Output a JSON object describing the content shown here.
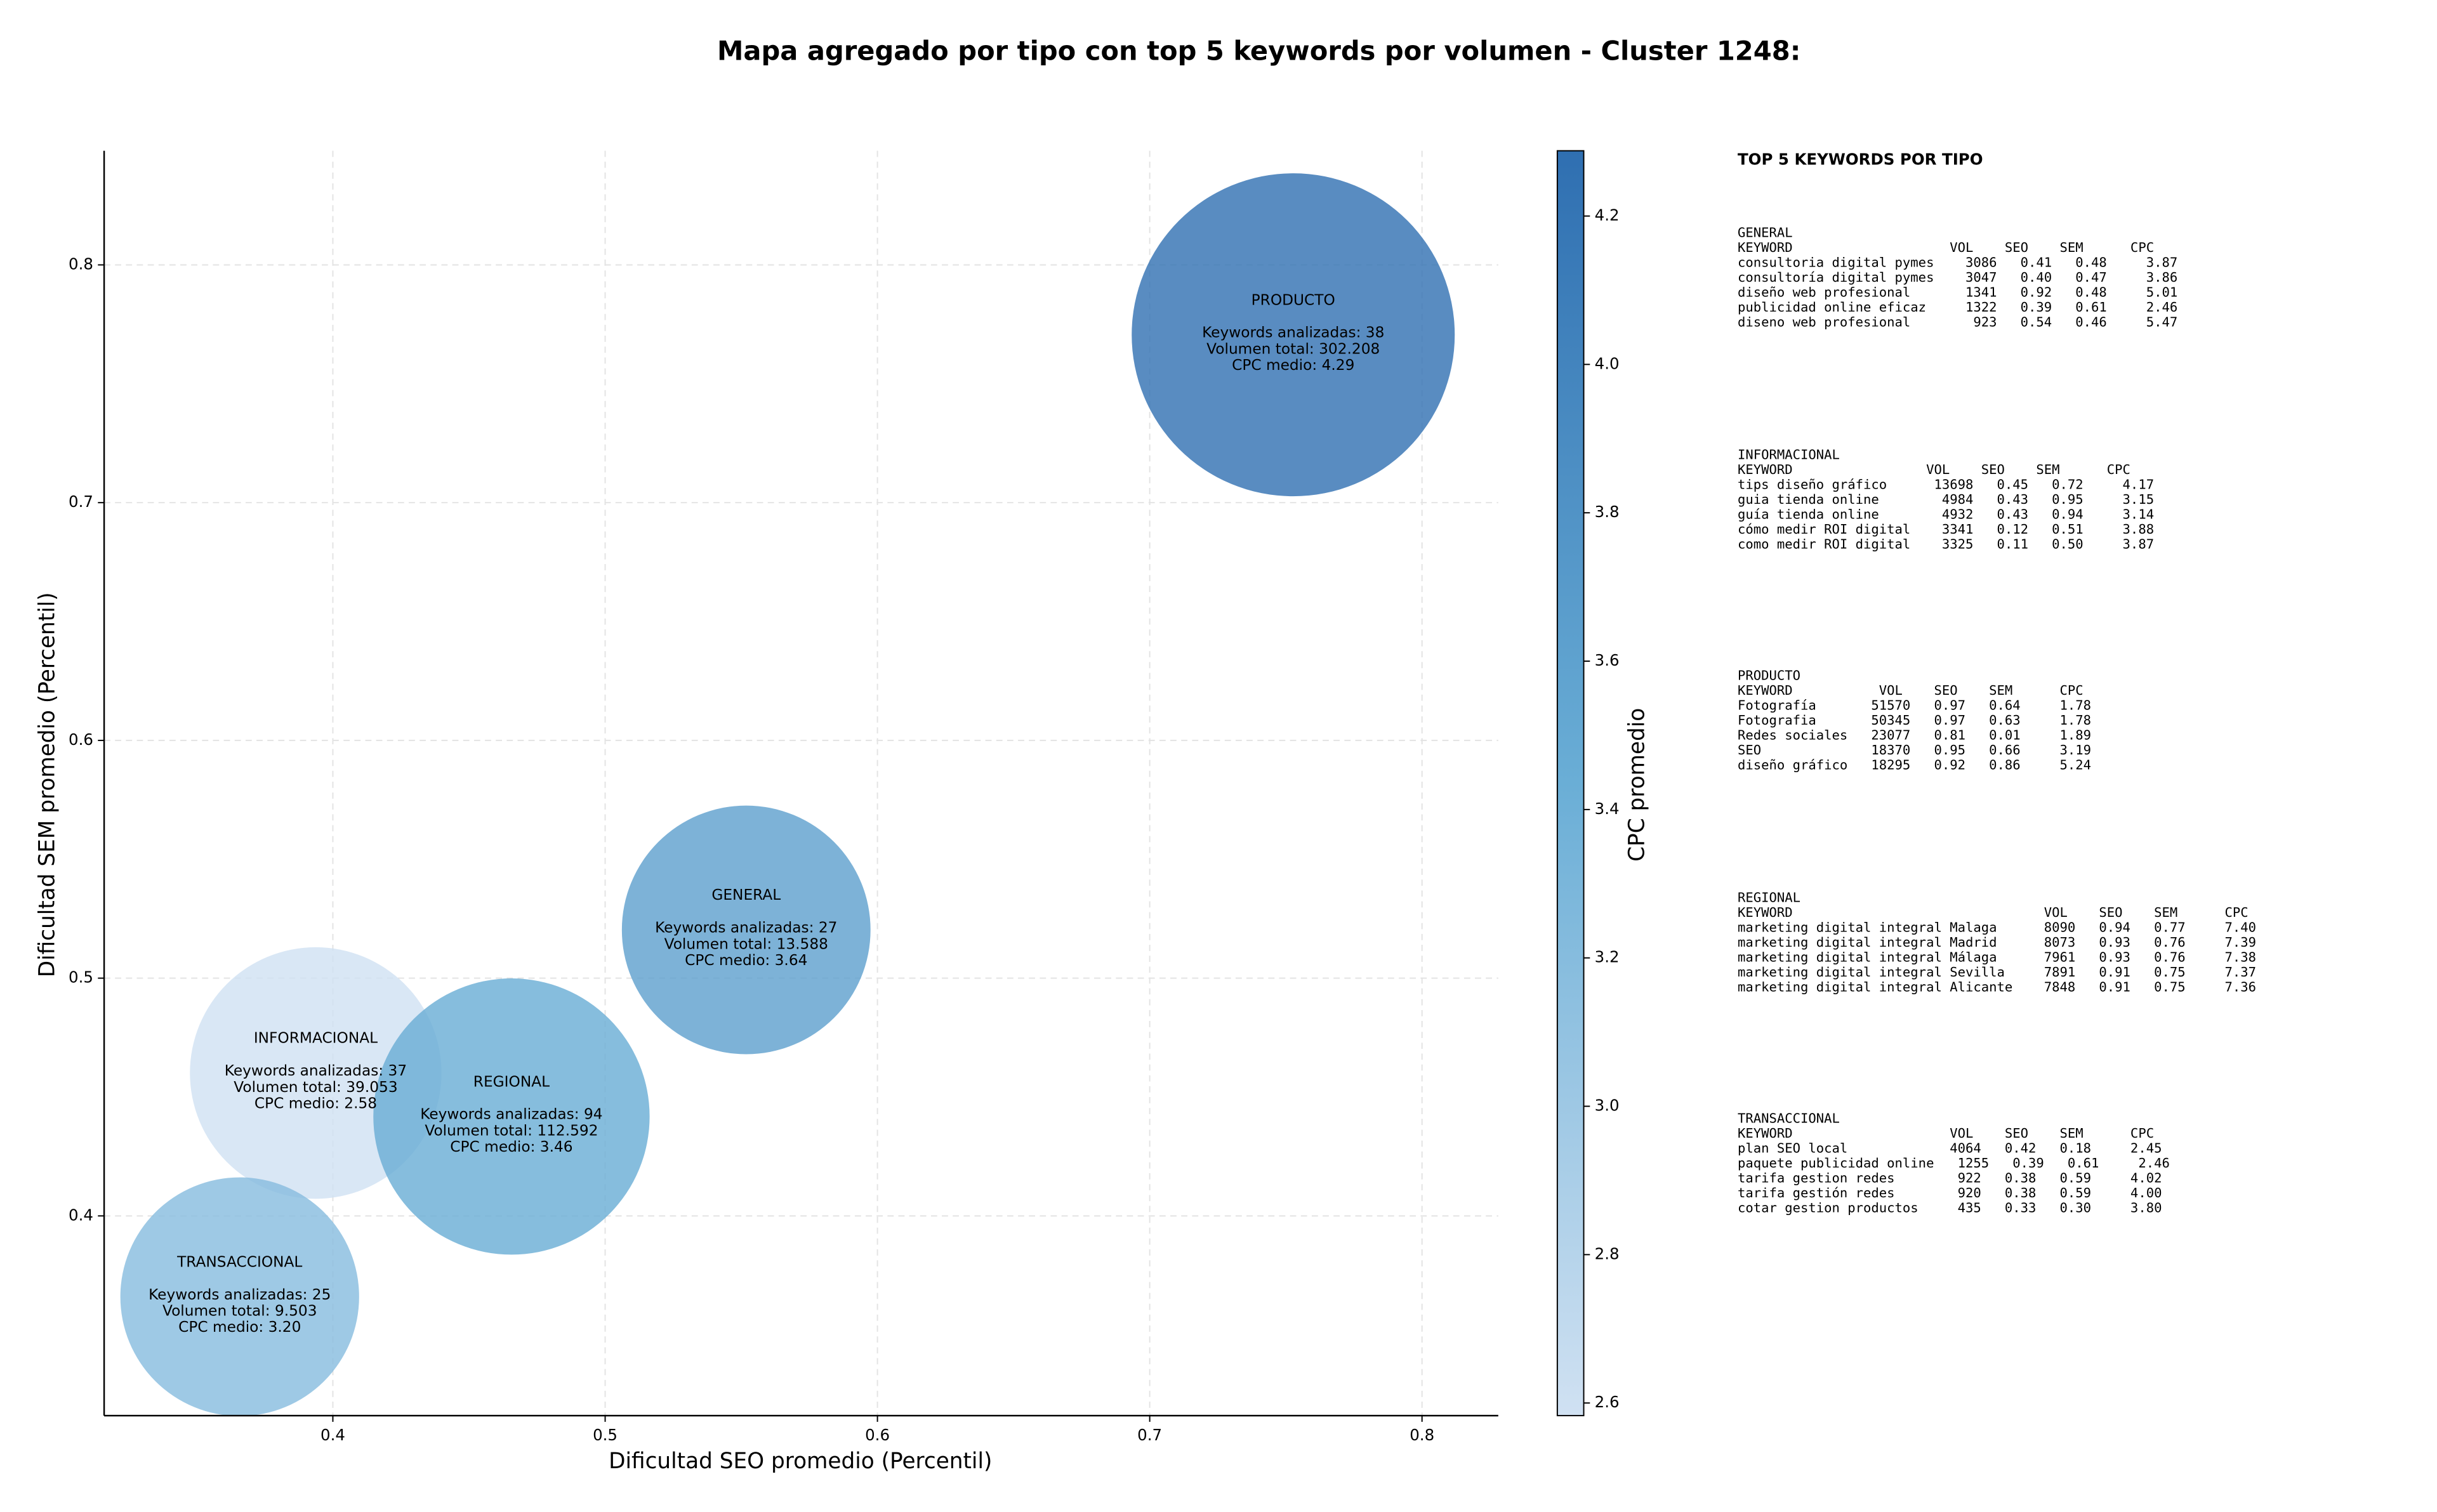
{
  "chart_data": {
    "type": "bubble",
    "title": "Mapa agregado por tipo con top 5 keywords por volumen - Cluster 1248:",
    "x_label": "Dificultad SEO promedio (Percentil)",
    "y_label": "Dificultad SEM promedio (Percentil)",
    "colorbar_label": "CPC promedio",
    "names": [
      "GENERAL",
      "INFORMACIONAL",
      "PRODUCTO",
      "REGIONAL",
      "TRANSACCIONAL"
    ],
    "x": [
      0.5518,
      0.3937,
      0.7527,
      0.4656,
      0.3658
    ],
    "y": [
      0.5203,
      0.4601,
      0.7706,
      0.4418,
      0.366
    ],
    "sizes": [
      6400,
      6550,
      10800,
      7900,
      5900
    ],
    "cpc": [
      3.64,
      2.58,
      4.29,
      3.46,
      3.2
    ],
    "annotations": [
      [
        "GENERAL",
        "Keywords analizadas: 27",
        "Volumen total: 13.588",
        "CPC medio: 3.64"
      ],
      [
        "INFORMACIONAL",
        "Keywords analizadas: 37",
        "Volumen total: 39.053",
        "CPC medio: 2.58"
      ],
      [
        "PRODUCTO",
        "Keywords analizadas: 38",
        "Volumen total: 302.208",
        "CPC medio: 4.29"
      ],
      [
        "REGIONAL",
        "Keywords analizadas: 94",
        "Volumen total: 112.592",
        "CPC medio: 3.46"
      ],
      [
        "TRANSACCIONAL",
        "Keywords analizadas: 25",
        "Volumen total: 9.503",
        "CPC medio: 3.20"
      ]
    ],
    "xlim": [
      0.316,
      0.828
    ],
    "ylim": [
      0.316,
      0.848
    ],
    "xticks": [
      0.4,
      0.5,
      0.6,
      0.7,
      0.8
    ],
    "yticks": [
      0.4,
      0.5,
      0.6,
      0.7,
      0.8
    ],
    "clim": [
      2.583,
      4.288
    ],
    "cticks": [
      2.6,
      2.8,
      {
        "value": 3,
        "label": "3.0"
      },
      3.2,
      3.4,
      3.6,
      3.8,
      {
        "value": 4,
        "label": "4.0"
      },
      4.2
    ],
    "colormap": [
      "#d0e1f2",
      "#6aaed6",
      "#2f6fb1"
    ],
    "grid": true
  },
  "side_panel": {
    "title": "TOP 5 KEYWORDS POR TIPO",
    "sections": [
      {
        "name": "GENERAL",
        "header": "KEYWORD                    VOL    SEO    SEM      CPC",
        "rows": [
          "consultoria digital pymes    3086   0.41   0.48     3.87",
          "consultoría digital pymes    3047   0.40   0.47     3.86",
          "diseño web profesional       1341   0.92   0.48     5.01",
          "publicidad online eficaz     1322   0.39   0.61     2.46",
          "diseno web profesional        923   0.54   0.46     5.47"
        ]
      },
      {
        "name": "INFORMACIONAL",
        "header": "KEYWORD                 VOL    SEO    SEM      CPC",
        "rows": [
          "tips diseño gráfico      13698   0.45   0.72     4.17",
          "guia tienda online        4984   0.43   0.95     3.15",
          "guía tienda online        4932   0.43   0.94     3.14",
          "cómo medir ROI digital    3341   0.12   0.51     3.88",
          "como medir ROI digital    3325   0.11   0.50     3.87"
        ]
      },
      {
        "name": "PRODUCTO",
        "header": "KEYWORD           VOL    SEO    SEM      CPC",
        "rows": [
          "Fotografía       51570   0.97   0.64     1.78",
          "Fotografia       50345   0.97   0.63     1.78",
          "Redes sociales   23077   0.81   0.01     1.89",
          "SEO              18370   0.95   0.66     3.19",
          "diseño gráfico   18295   0.92   0.86     5.24"
        ]
      },
      {
        "name": "REGIONAL",
        "header": "KEYWORD                                VOL    SEO    SEM      CPC",
        "rows": [
          "marketing digital integral Malaga      8090   0.94   0.77     7.40",
          "marketing digital integral Madrid      8073   0.93   0.76     7.39",
          "marketing digital integral Málaga      7961   0.93   0.76     7.38",
          "marketing digital integral Sevilla     7891   0.91   0.75     7.37",
          "marketing digital integral Alicante    7848   0.91   0.75     7.36"
        ]
      },
      {
        "name": "TRANSACCIONAL",
        "header": "KEYWORD                    VOL    SEO    SEM      CPC",
        "rows": [
          "plan SEO local             4064   0.42   0.18     2.45",
          "paquete publicidad online   1255   0.39   0.61     2.46",
          "tarifa gestion redes        922   0.38   0.59     4.02",
          "tarifa gestión redes        920   0.38   0.59     4.00",
          "cotar gestion productos     435   0.33   0.30     3.80"
        ]
      }
    ]
  }
}
